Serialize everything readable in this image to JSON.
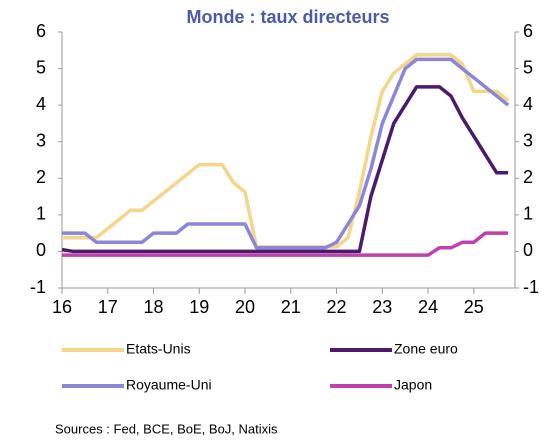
{
  "chart_data": {
    "type": "line",
    "title": "Monde : taux directeurs",
    "source": "Sources :  Fed, BCE, BoE, BoJ, Natixis",
    "x": [
      2016,
      2016.25,
      2016.5,
      2016.75,
      2017,
      2017.25,
      2017.5,
      2017.75,
      2018,
      2018.25,
      2018.5,
      2018.75,
      2019,
      2019.25,
      2019.5,
      2019.75,
      2020,
      2020.25,
      2020.5,
      2020.75,
      2021,
      2021.25,
      2021.5,
      2021.75,
      2022,
      2022.25,
      2022.5,
      2022.75,
      2023,
      2023.25,
      2023.5,
      2023.75,
      2024,
      2024.25,
      2024.5,
      2024.75,
      2025,
      2025.25,
      2025.5,
      2025.75
    ],
    "series": [
      {
        "name": "Etats-Unis",
        "color": "#f5d58a",
        "values": [
          0.375,
          0.375,
          0.375,
          0.375,
          0.625,
          0.875,
          1.125,
          1.125,
          1.375,
          1.625,
          1.875,
          2.125,
          2.375,
          2.375,
          2.375,
          1.875,
          1.625,
          0.125,
          0.125,
          0.125,
          0.125,
          0.125,
          0.125,
          0.125,
          0.125,
          0.375,
          1.625,
          3.125,
          4.375,
          4.875,
          5.125,
          5.375,
          5.375,
          5.375,
          5.375,
          5.125,
          4.375,
          4.375,
          4.375,
          4.125
        ]
      },
      {
        "name": "Zone euro",
        "color": "#4a1a6b",
        "values": [
          0.05,
          0,
          0,
          0,
          0,
          0,
          0,
          0,
          0,
          0,
          0,
          0,
          0,
          0,
          0,
          0,
          0,
          0,
          0,
          0,
          0,
          0,
          0,
          0,
          0,
          0,
          0,
          1.5,
          2.5,
          3.5,
          4.0,
          4.5,
          4.5,
          4.5,
          4.25,
          3.65,
          3.15,
          2.65,
          2.15,
          2.15
        ]
      },
      {
        "name": "Royaume-Uni",
        "color": "#8b86d8",
        "values": [
          0.5,
          0.5,
          0.5,
          0.25,
          0.25,
          0.25,
          0.25,
          0.25,
          0.5,
          0.5,
          0.5,
          0.75,
          0.75,
          0.75,
          0.75,
          0.75,
          0.75,
          0.1,
          0.1,
          0.1,
          0.1,
          0.1,
          0.1,
          0.1,
          0.25,
          0.75,
          1.25,
          2.25,
          3.5,
          4.25,
          5.0,
          5.25,
          5.25,
          5.25,
          5.25,
          5.0,
          4.75,
          4.5,
          4.25,
          4.0
        ]
      },
      {
        "name": "Japon",
        "color": "#c040b0",
        "values": [
          -0.1,
          -0.1,
          -0.1,
          -0.1,
          -0.1,
          -0.1,
          -0.1,
          -0.1,
          -0.1,
          -0.1,
          -0.1,
          -0.1,
          -0.1,
          -0.1,
          -0.1,
          -0.1,
          -0.1,
          -0.1,
          -0.1,
          -0.1,
          -0.1,
          -0.1,
          -0.1,
          -0.1,
          -0.1,
          -0.1,
          -0.1,
          -0.1,
          -0.1,
          -0.1,
          -0.1,
          -0.1,
          -0.1,
          0.1,
          0.1,
          0.25,
          0.25,
          0.5,
          0.5,
          0.5
        ]
      }
    ],
    "xlim": [
      2016,
      2025.9
    ],
    "xticks": [
      {
        "value": 2016,
        "label": "16"
      },
      {
        "value": 2017,
        "label": "17"
      },
      {
        "value": 2018,
        "label": "18"
      },
      {
        "value": 2019,
        "label": "19"
      },
      {
        "value": 2020,
        "label": "20"
      },
      {
        "value": 2021,
        "label": "21"
      },
      {
        "value": 2022,
        "label": "22"
      },
      {
        "value": 2023,
        "label": "23"
      },
      {
        "value": 2024,
        "label": "24"
      },
      {
        "value": 2025,
        "label": "25"
      }
    ],
    "ylim": [
      -1,
      6
    ],
    "yticks": [
      -1,
      0,
      1,
      2,
      3,
      4,
      5,
      6
    ],
    "y2lim": [
      -1,
      6
    ],
    "y2ticks": [
      -1,
      0,
      1,
      2,
      3,
      4,
      5,
      6
    ]
  }
}
